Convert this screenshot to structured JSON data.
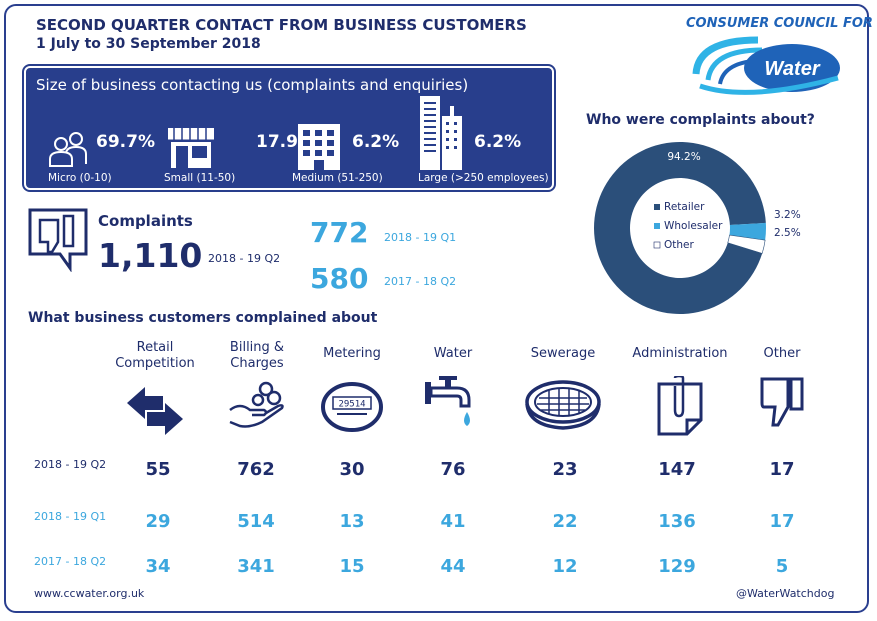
{
  "header": {
    "title": "SECOND QUARTER CONTACT FROM BUSINESS CUSTOMERS",
    "subtitle": "1 July to 30 September 2018",
    "logo_top": "CONSUMER COUNCIL FOR",
    "logo_word": "Water"
  },
  "size_box": {
    "title": "Size of business contacting us (complaints and enquiries)",
    "segments": [
      {
        "pct": "69.7%",
        "label": "Micro (0-10)",
        "icon": "people-icon"
      },
      {
        "pct": "17.9%",
        "label": "Small (11-50)",
        "icon": "shop-icon"
      },
      {
        "pct": "6.2%",
        "label": "Medium (51-250)",
        "icon": "office-building-icon"
      },
      {
        "pct": "6.2%",
        "label": "Large (>250 employees)",
        "icon": "skyscraper-icon"
      }
    ]
  },
  "donut": {
    "title": "Who were complaints about?",
    "slices": [
      {
        "name": "Retailer",
        "value": 94.2,
        "label": "94.2%",
        "color": "#2b4f7a"
      },
      {
        "name": "Wholesaler",
        "value": 3.2,
        "label": "3.2%",
        "color": "#3ca7de"
      },
      {
        "name": "Other",
        "value": 2.5,
        "label": "2.5%",
        "color": "#ffffff"
      }
    ]
  },
  "complaints": {
    "label": "Complaints",
    "current_value": "1,110",
    "current_period": "2018 - 19 Q2",
    "prev_value": "772",
    "prev_period": "2018 - 19 Q1",
    "year_ago_value": "580",
    "year_ago_period": "2017 - 18 Q2"
  },
  "table": {
    "title": "What business customers complained about",
    "categories": [
      {
        "label1": "Retail",
        "label2": "Competition",
        "icon": "arrows-icon"
      },
      {
        "label1": "Billing &",
        "label2": "Charges",
        "icon": "hand-coins-icon"
      },
      {
        "label1": "Metering",
        "label2": "",
        "icon": "water-meter-icon"
      },
      {
        "label1": "Water",
        "label2": "",
        "icon": "tap-icon"
      },
      {
        "label1": "Sewerage",
        "label2": "",
        "icon": "drain-cover-icon"
      },
      {
        "label1": "Administration",
        "label2": "",
        "icon": "clipboard-icon"
      },
      {
        "label1": "Other",
        "label2": "",
        "icon": "thumbs-down-icon"
      }
    ],
    "rows": [
      {
        "period": "2018 - 19 Q2",
        "values": [
          "55",
          "762",
          "30",
          "76",
          "23",
          "147",
          "17"
        ]
      },
      {
        "period": "2018 - 19 Q1",
        "values": [
          "29",
          "514",
          "13",
          "41",
          "22",
          "136",
          "17"
        ]
      },
      {
        "period": "2017 - 18 Q2",
        "values": [
          "34",
          "341",
          "15",
          "44",
          "12",
          "129",
          "5"
        ]
      }
    ],
    "meter_reading": "29514"
  },
  "footer": {
    "website": "www.ccwater.org.uk",
    "twitter": "@WaterWatchdog"
  },
  "colors": {
    "navy": "#1f2d6b",
    "box_blue": "#283e8c",
    "light_blue": "#3ca7de",
    "donut_main": "#2b4f7a"
  }
}
